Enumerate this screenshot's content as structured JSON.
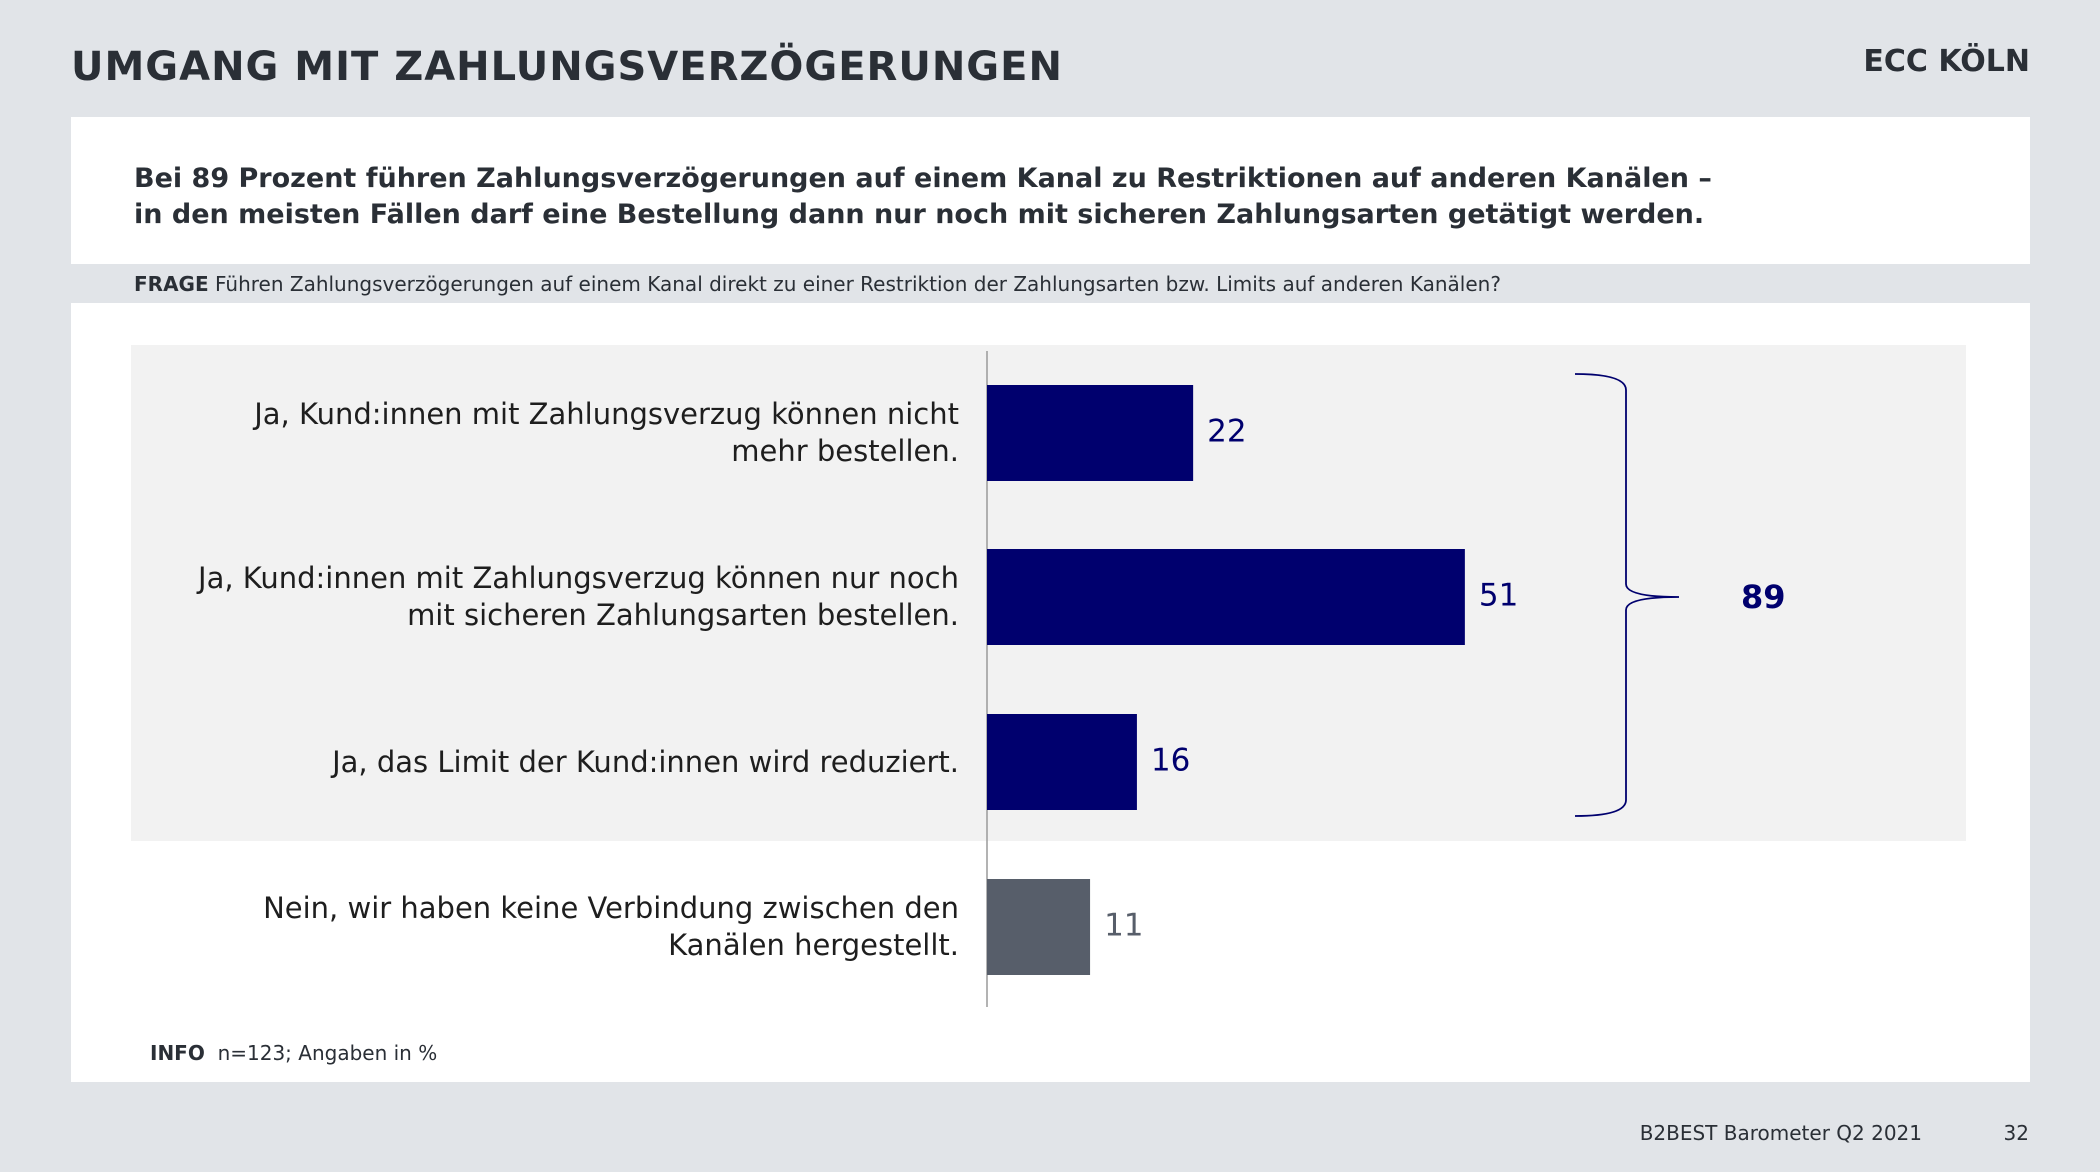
{
  "slide": {
    "title": "UMGANG MIT ZAHLUNGSVERZÖGERUNGEN",
    "logo": "ECC KÖLN",
    "subtitle": [
      "Bei 89 Prozent führen Zahlungsverzögerungen auf einem Kanal zu Restriktionen auf anderen Kanälen –",
      "in den meisten Fällen darf eine Bestellung dann nur noch mit sicheren Zahlungsarten getätigt werden."
    ],
    "question_label": "FRAGE",
    "question": "Führen Zahlungsverzögerungen auf einem Kanal direkt zu einer Restriktion der Zahlungsarten bzw. Limits auf anderen Kanälen?",
    "info_label": "INFO",
    "info": "n=123; Angaben in %",
    "footer": "B2BEST Barometer Q2 2021",
    "page": "32"
  },
  "chart_data": {
    "type": "bar",
    "orientation": "horizontal",
    "categories": [
      [
        "Ja, Kund:innen mit Zahlungsverzug können nicht",
        "mehr bestellen."
      ],
      [
        "Ja, Kund:innen mit Zahlungsverzug können nur noch",
        "mit sicheren Zahlungsarten bestellen."
      ],
      [
        "Ja, das Limit der Kund:innen wird reduziert."
      ],
      [
        "Nein, wir haben keine Verbindung zwischen den",
        "Kanälen hergestellt."
      ]
    ],
    "values": [
      22,
      51,
      16,
      11
    ],
    "colors": [
      "#00006e",
      "#00006e",
      "#00006e",
      "#575e6a"
    ],
    "total": 89,
    "total_color": "#00006e"
  }
}
